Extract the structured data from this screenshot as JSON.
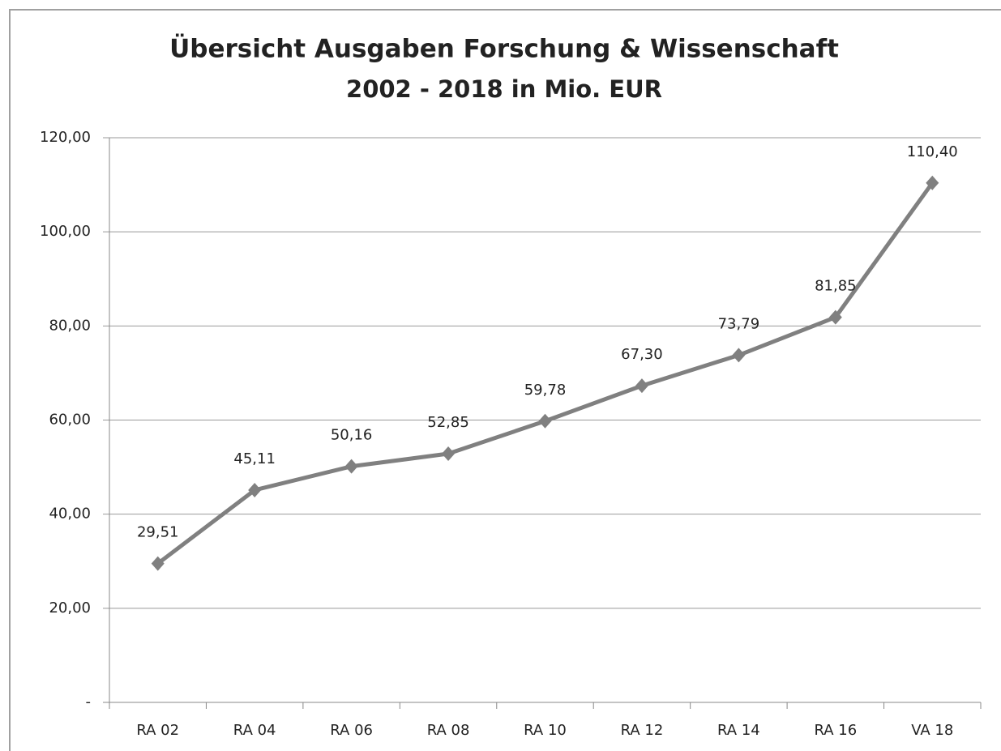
{
  "chart_data": {
    "type": "line",
    "title": "Übersicht Ausgaben Forschung & Wissenschaft",
    "subtitle": "2002 - 2018 in Mio. EUR",
    "categories": [
      "RA 02",
      "RA 04",
      "RA 06",
      "RA 08",
      "RA 10",
      "RA 12",
      "RA 14",
      "RA 16",
      "VA 18"
    ],
    "values": [
      29.51,
      45.11,
      50.16,
      52.85,
      59.78,
      67.3,
      73.79,
      81.85,
      110.4
    ],
    "value_labels": [
      "29,51",
      "45,11",
      "50,16",
      "52,85",
      "59,78",
      "67,30",
      "73,79",
      "81,85",
      "110,40"
    ],
    "color": "#808080",
    "ylim": [
      0,
      120
    ],
    "yticks": [
      {
        "value": 0,
        "label": "-"
      },
      {
        "value": 20,
        "label": "20,00"
      },
      {
        "value": 40,
        "label": "40,00"
      },
      {
        "value": 60,
        "label": "60,00"
      },
      {
        "value": 80,
        "label": "80,00"
      },
      {
        "value": 100,
        "label": "100,00"
      },
      {
        "value": 120,
        "label": "120,00"
      }
    ],
    "grid": true
  }
}
